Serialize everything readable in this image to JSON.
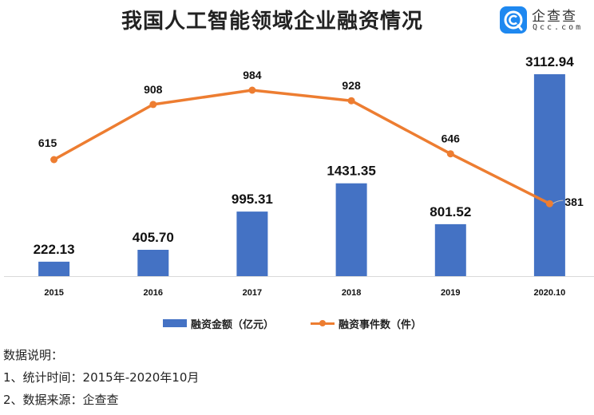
{
  "header": {
    "title": "我国人工智能领域企业融资情况",
    "logo_cn": "企查查",
    "logo_en": "Qcc.com"
  },
  "legend": {
    "bar_label": "融资金额（亿元）",
    "line_label": "融资事件数（件）"
  },
  "notes": {
    "heading": "数据说明：",
    "line1": "1、统计时间：2015年-2020年10月",
    "line2": "2、数据来源：企查查"
  },
  "colors": {
    "bar": "#4472c4",
    "line": "#ed7d31"
  },
  "chart_data": {
    "type": "bar+line",
    "title": "我国人工智能领域企业融资情况",
    "categories": [
      "2015",
      "2016",
      "2017",
      "2018",
      "2019",
      "2020.10"
    ],
    "series": [
      {
        "name": "融资金额（亿元）",
        "type": "bar",
        "values": [
          222.13,
          405.7,
          995.31,
          1431.35,
          801.52,
          3112.94
        ],
        "labels": [
          "222.13",
          "405.70",
          "995.31",
          "1431.35",
          "801.52",
          "3112.94"
        ]
      },
      {
        "name": "融资事件数（件）",
        "type": "line",
        "values": [
          615,
          908,
          984,
          928,
          646,
          381
        ],
        "labels": [
          "615",
          "908",
          "984",
          "928",
          "646",
          "381"
        ]
      }
    ],
    "xlabel": "",
    "ylabel": "",
    "grid": false,
    "legend_position": "bottom"
  }
}
